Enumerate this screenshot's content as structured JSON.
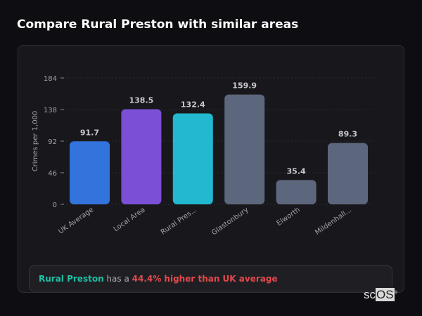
{
  "header": {
    "title": "Compare Rural Preston with similar areas"
  },
  "chart_data": {
    "type": "bar",
    "ylabel": "Crimes per 1,000",
    "ylim": [
      0,
      184
    ],
    "yticks": [
      0,
      46,
      92,
      138,
      184
    ],
    "grid": true,
    "categories": [
      "UK Average",
      "Local Area",
      "Rural Pres...",
      "Glastonbury",
      "Elworth",
      "Mildenhall..."
    ],
    "values": [
      91.7,
      138.5,
      132.4,
      159.9,
      35.4,
      89.3
    ],
    "data_labels": [
      "91.7",
      "138.5",
      "132.4",
      "159.9",
      "35.4",
      "89.3"
    ],
    "colors": [
      "#3273dc",
      "#7b4fd6",
      "#22b8cf",
      "#5c677d",
      "#5c677d",
      "#5c677d"
    ]
  },
  "callout": {
    "area": "Rural Preston",
    "middle": " has a ",
    "comparison": "44.4% higher than UK average"
  },
  "logo": {
    "text_a": "sc",
    "text_b": "OS",
    "mark": "®"
  }
}
